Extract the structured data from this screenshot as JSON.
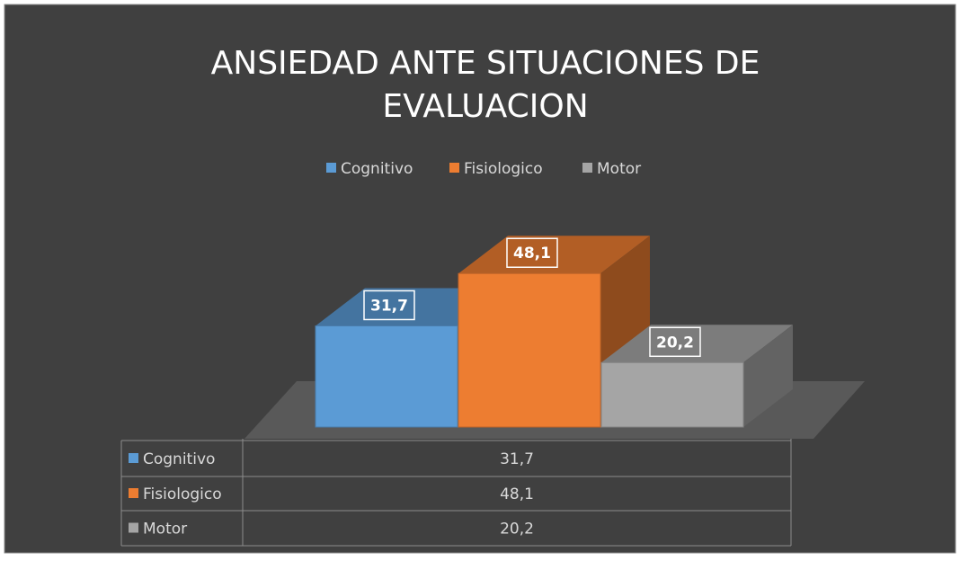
{
  "chart_data": {
    "type": "bar",
    "title": "ANSIEDAD ANTE SITUACIONES DE EVALUACION",
    "categories": [
      null
    ],
    "series": [
      {
        "name": "Cognitivo",
        "color": "#5b9bd5",
        "values": [
          31.7
        ],
        "value_labels": [
          "31,7"
        ]
      },
      {
        "name": "Fisiologico",
        "color": "#ed7d31",
        "values": [
          48.1
        ],
        "value_labels": [
          "48,1"
        ]
      },
      {
        "name": "Motor",
        "color": "#a5a5a5",
        "values": [
          20.2
        ],
        "value_labels": [
          "20,2"
        ]
      }
    ],
    "legend": "top",
    "data_table": true
  }
}
